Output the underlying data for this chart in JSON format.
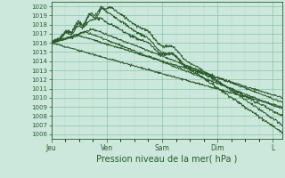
{
  "title": "Pression niveau de la mer( hPa )",
  "ylim": [
    1006,
    1020
  ],
  "yticks": [
    1006,
    1007,
    1008,
    1009,
    1010,
    1011,
    1012,
    1013,
    1014,
    1015,
    1016,
    1017,
    1018,
    1019,
    1020
  ],
  "x_day_labels": [
    "Jeu",
    "Ven",
    "Sam",
    "Dim",
    "L"
  ],
  "x_day_positions": [
    0,
    24,
    48,
    72,
    96
  ],
  "background_color": "#cce8dc",
  "grid_major_color": "#88c4a8",
  "grid_minor_color": "#aad8c0",
  "line_color": "#2d5a2d",
  "line_width": 0.7,
  "total_hours": 100,
  "tick_fontsize": 5,
  "xlabel_fontsize": 7
}
